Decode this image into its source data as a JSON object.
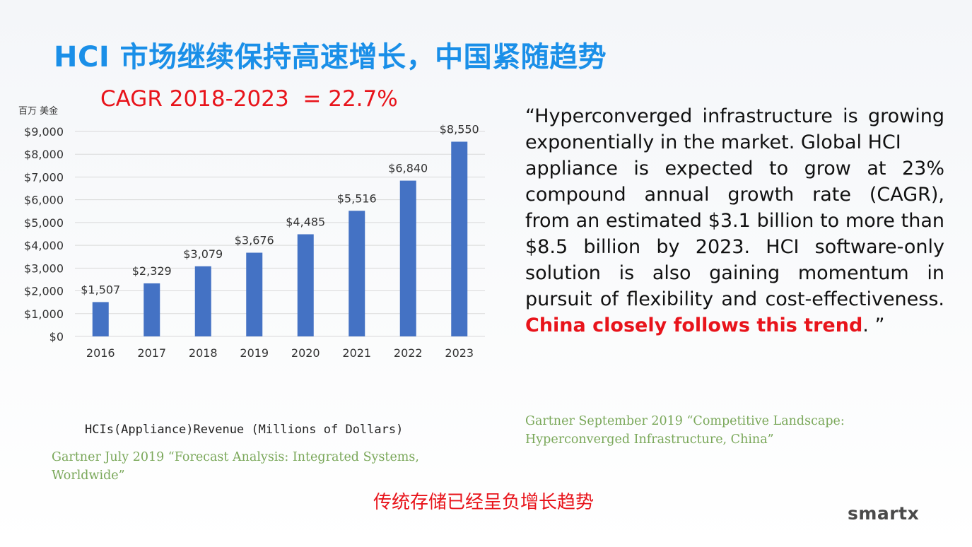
{
  "slide": {
    "title": "HCI 市场继续保持高速增长，中国紧随趋势",
    "cagr": "CAGR 2018-2023  = 22.7%",
    "unit_label": "百万 美金",
    "caption": "HCIs(Appliance)Revenue (Millions of Dollars)",
    "source_left": "Gartner July 2019  “Forecast Analysis: Integrated Systems, Worldwide”",
    "quote": {
      "text_main": "“Hyperconverged infrastructure is growing exponentially in the market. Global HCI\nappliance is expected to grow at 23% compound annual growth rate (CAGR), from an estimated  $3.1 billion to more than $8.5 billion by 2023. HCI software-only solution is also gaining momentum in pursuit of flexibility and cost-effectiveness. ",
      "text_highlight": "China closely follows this trend",
      "text_end": ". ”"
    },
    "source_right": "Gartner September 2019  “Competitive Landscape: Hyperconverged Infrastructure, China”",
    "footer_note": "传统存储已经呈负增长趋势",
    "logo": "smartx"
  },
  "colors": {
    "title": "#1a8fe8",
    "bar": "#4472c4",
    "highlight": "#e8141b",
    "source": "#7aa85a"
  },
  "chart_data": {
    "type": "bar",
    "categories": [
      "2016",
      "2017",
      "2018",
      "2019",
      "2020",
      "2021",
      "2022",
      "2023"
    ],
    "values": [
      1507,
      2329,
      3079,
      3676,
      4485,
      5516,
      6840,
      8550
    ],
    "data_labels": [
      "$1,507",
      "$2,329",
      "$3,079",
      "$3,676",
      "$4,485",
      "$5,516",
      "$6,840",
      "$8,550"
    ],
    "y_ticks": [
      0,
      1000,
      2000,
      3000,
      4000,
      5000,
      6000,
      7000,
      8000,
      9000
    ],
    "y_tick_labels": [
      "$0",
      "$1,000",
      "$2,000",
      "$3,000",
      "$4,000",
      "$5,000",
      "$6,000",
      "$7,000",
      "$8,000",
      "$9,000"
    ],
    "ylim": [
      0,
      9000
    ],
    "grid": true,
    "legend": "none"
  }
}
